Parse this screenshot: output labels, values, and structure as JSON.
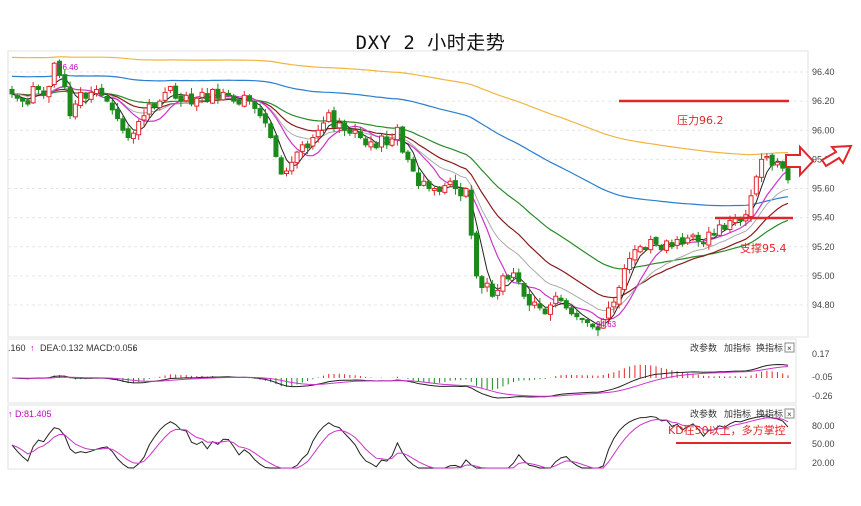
{
  "chart_data": [
    {
      "type": "candlestick",
      "title": "DXY 2 小时走势",
      "y_ticks": [
        "96.40",
        "96.20",
        "96.00",
        "95.80",
        "95.60",
        "95.40",
        "95.20",
        "95.00",
        "94.80"
      ],
      "ylim": [
        94.62,
        96.55
      ],
      "annotations": {
        "high_label": "96.46",
        "low_label": "94.63",
        "resistance_label": "压力96.2",
        "resistance_value": 96.2,
        "support_label": "支撑95.4",
        "support_value": 95.4
      },
      "close": [
        96.25,
        96.22,
        96.2,
        96.18,
        96.3,
        96.28,
        96.24,
        96.3,
        96.46,
        96.38,
        96.3,
        96.1,
        96.18,
        96.26,
        96.22,
        96.26,
        96.28,
        96.24,
        96.2,
        96.14,
        96.08,
        96.0,
        95.95,
        95.98,
        96.06,
        96.1,
        96.18,
        96.16,
        96.2,
        96.26,
        96.3,
        96.22,
        96.2,
        96.24,
        96.18,
        96.22,
        96.26,
        96.2,
        96.28,
        96.22,
        96.26,
        96.24,
        96.2,
        96.18,
        96.24,
        96.2,
        96.15,
        96.1,
        96.05,
        95.95,
        95.82,
        95.7,
        95.72,
        95.78,
        95.85,
        95.9,
        95.88,
        95.95,
        96.0,
        96.05,
        96.12,
        96.02,
        96.05,
        96.0,
        95.98,
        96.0,
        95.95,
        95.9,
        95.92,
        95.88,
        95.96,
        95.9,
        95.94,
        96.02,
        95.85,
        95.8,
        95.72,
        95.62,
        95.65,
        95.6,
        95.6,
        95.58,
        95.62,
        95.65,
        95.6,
        95.55,
        95.6,
        95.28,
        95.0,
        94.92,
        94.95,
        94.86,
        94.9,
        95.0,
        94.98,
        95.02,
        94.96,
        94.86,
        94.8,
        94.82,
        94.78,
        94.74,
        94.8,
        94.86,
        94.83,
        94.78,
        94.74,
        94.72,
        94.7,
        94.68,
        94.65,
        94.63,
        94.7,
        94.78,
        94.82,
        94.92,
        95.05,
        95.12,
        95.18,
        95.2,
        95.18,
        95.25,
        95.22,
        95.18,
        95.24,
        95.2,
        95.25,
        95.22,
        95.26,
        95.28,
        95.24,
        95.22,
        95.3,
        95.28,
        95.35,
        95.32,
        95.38,
        95.4,
        95.38,
        95.42,
        95.55,
        95.68,
        95.8,
        95.82,
        95.76,
        95.78,
        95.74,
        95.66
      ],
      "indicator_panels": [
        {
          "name": "MACD",
          "label_value": ".160",
          "dea_label": "DEA:0.132",
          "macd_label": "MACD:0.056",
          "y_ticks": [
            "0.17",
            "-0.05",
            "-0.26"
          ],
          "buttons": [
            "改参数",
            "加指标",
            "换指标"
          ]
        },
        {
          "name": "KD",
          "label_value": "↑ D:81.405",
          "annotation": "KD在50以上，多方掌控",
          "y_ticks": [
            "80.00",
            "50.00",
            "20.00"
          ],
          "buttons": [
            "改参数",
            "加指标",
            "换指标"
          ]
        }
      ],
      "colors": {
        "up": "#e0262b",
        "down": "#1a8a1a",
        "ma5": "#222222",
        "ma10": "#cc33cc",
        "ma20": "#8b1a1a",
        "ma60": "#2a8a2a",
        "ma120": "#2a7fd0",
        "ma250": "#f2b640",
        "annotation": "#e0262b"
      }
    }
  ]
}
